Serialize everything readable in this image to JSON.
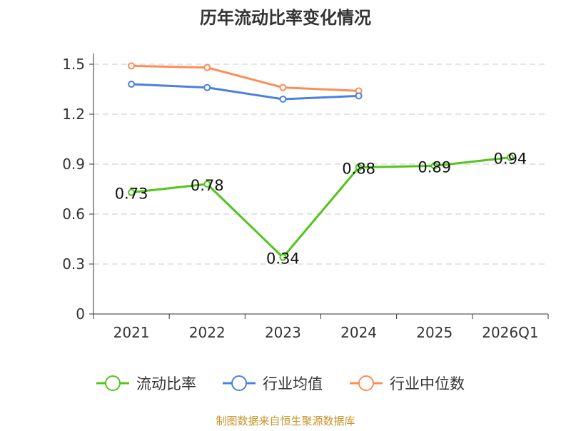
{
  "chart_data": {
    "type": "line",
    "title": "历年流动比率变化情况",
    "categories": [
      "2021",
      "2022",
      "2023",
      "2024",
      "2025",
      "2026Q1"
    ],
    "ylim": [
      0,
      1.5
    ],
    "yticks": [
      "0",
      "0.3",
      "0.6",
      "0.9",
      "1.2",
      "1.5"
    ],
    "grid": true,
    "legend_position": "bottom",
    "series": [
      {
        "name": "流动比率",
        "color": "#52c41a",
        "values": [
          0.73,
          0.78,
          0.34,
          0.88,
          0.89,
          0.94
        ],
        "labels": [
          "0.73",
          "0.78",
          "0.34",
          "0.88",
          "0.89",
          "0.94"
        ]
      },
      {
        "name": "行业均值",
        "color": "#4a80e0",
        "values": [
          1.38,
          1.36,
          1.29,
          1.31,
          null,
          null
        ]
      },
      {
        "name": "行业中位数",
        "color": "#ff8c55",
        "values": [
          1.49,
          1.48,
          1.36,
          1.34,
          null,
          null
        ]
      }
    ]
  },
  "footer": {
    "source": "制图数据来自恒生聚源数据库",
    "color": "#c8952a"
  }
}
